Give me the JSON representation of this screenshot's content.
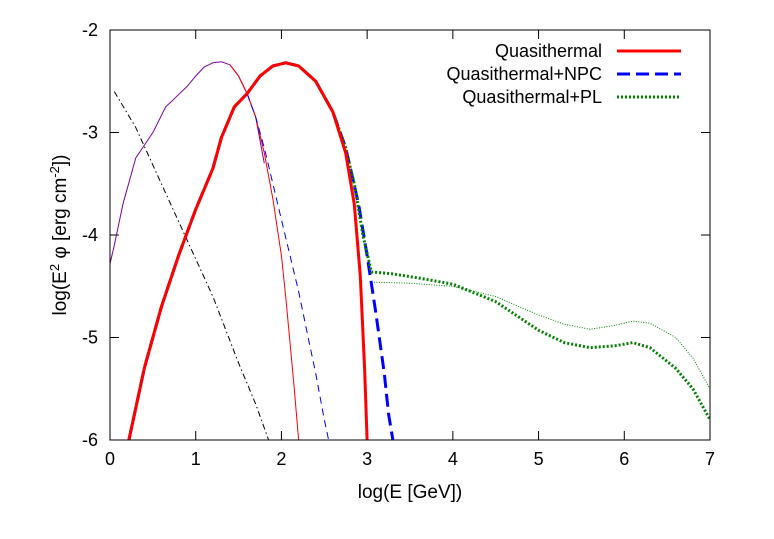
{
  "chart_data": {
    "type": "line",
    "xlabel": "log(E [GeV])",
    "ylabel": {
      "prefix": "log(E",
      "sup1": "2",
      "mid": " φ [erg cm",
      "sup2": "-2",
      "suffix": "])"
    },
    "xlim": [
      0,
      7
    ],
    "ylim": [
      -6,
      -2
    ],
    "xticks": [
      "0",
      "1",
      "2",
      "3",
      "4",
      "5",
      "6",
      "7"
    ],
    "yticks": [
      "-6",
      "-5",
      "-4",
      "-3",
      "-2"
    ],
    "legend_position": "top-right",
    "legend": [
      {
        "label": "Quasithermal",
        "color": "#ff0000",
        "style": "solid"
      },
      {
        "label": "Quasithermal+NPC",
        "color": "#0000ff",
        "style": "dashed"
      },
      {
        "label": "Quasithermal+PL",
        "color": "#008000",
        "style": "dotted"
      }
    ],
    "series": [
      {
        "id": "thin_purple_solid",
        "color": "#7a0099",
        "style": "solid",
        "thin": true,
        "x": [
          0,
          0.05,
          0.15,
          0.3,
          0.5,
          0.65,
          0.75,
          0.9,
          1.0,
          1.1,
          1.2,
          1.3,
          1.4,
          1.5,
          1.6,
          1.7,
          1.8
        ],
        "y": [
          -4.28,
          -4.1,
          -3.7,
          -3.25,
          -3.0,
          -2.75,
          -2.67,
          -2.55,
          -2.45,
          -2.36,
          -2.32,
          -2.31,
          -2.34,
          -2.45,
          -2.62,
          -2.85,
          -3.3
        ]
      },
      {
        "id": "thin_red_low",
        "color": "#ff0000",
        "style": "solid",
        "thin": true,
        "x": [
          1.4,
          1.5,
          1.6,
          1.7,
          1.8,
          1.9,
          2.0,
          2.05,
          2.1,
          2.15,
          2.2
        ],
        "y": [
          -2.34,
          -2.45,
          -2.62,
          -2.85,
          -3.2,
          -3.65,
          -4.2,
          -4.6,
          -5.05,
          -5.5,
          -6.0
        ]
      },
      {
        "id": "thin_blue_low",
        "color": "#0000ff",
        "style": "dashed",
        "thin": true,
        "x": [
          1.6,
          1.7,
          1.8,
          1.9,
          2.0,
          2.1,
          2.2,
          2.3,
          2.4,
          2.5,
          2.55
        ],
        "y": [
          -2.62,
          -2.85,
          -3.15,
          -3.5,
          -3.85,
          -4.2,
          -4.55,
          -4.95,
          -5.35,
          -5.8,
          -6.0
        ]
      },
      {
        "id": "falling_powerlaw",
        "color": "#000000",
        "style": "dashdot",
        "thin": true,
        "x": [
          0.05,
          0.3,
          0.6,
          0.9,
          1.2,
          1.5,
          1.7,
          1.85
        ],
        "y": [
          -2.6,
          -2.95,
          -3.5,
          -4.05,
          -4.6,
          -5.25,
          -5.65,
          -6.0
        ]
      },
      {
        "id": "thin_green_pl",
        "color": "#008000",
        "style": "dotted",
        "thin": true,
        "x": [
          3.05,
          3.5,
          4.0,
          4.5,
          5.0,
          5.3,
          5.6,
          5.9,
          6.1,
          6.3,
          6.6,
          6.8,
          7.0
        ],
        "y": [
          -4.46,
          -4.47,
          -4.5,
          -4.6,
          -4.78,
          -4.87,
          -4.92,
          -4.88,
          -4.84,
          -4.86,
          -5.0,
          -5.2,
          -5.5
        ]
      },
      {
        "id": "qt_npc",
        "color": "#0000ff",
        "style": "dashed",
        "thin": false,
        "x": [
          0.22,
          0.4,
          0.6,
          0.8,
          1.0,
          1.2,
          1.3,
          1.45,
          1.6,
          1.75,
          1.9,
          2.05,
          2.2,
          2.4,
          2.6,
          2.75,
          2.9,
          3.0,
          3.1,
          3.2,
          3.25,
          3.3
        ],
        "y": [
          -6.0,
          -5.3,
          -4.7,
          -4.2,
          -3.75,
          -3.35,
          -3.05,
          -2.75,
          -2.62,
          -2.45,
          -2.35,
          -2.32,
          -2.35,
          -2.5,
          -2.8,
          -3.15,
          -3.7,
          -4.2,
          -4.75,
          -5.35,
          -5.75,
          -6.0
        ]
      },
      {
        "id": "qt_pl",
        "color": "#008000",
        "style": "dotted",
        "thin": false,
        "x": [
          0.22,
          0.4,
          0.6,
          0.8,
          1.0,
          1.2,
          1.3,
          1.45,
          1.6,
          1.75,
          1.9,
          2.05,
          2.2,
          2.4,
          2.6,
          2.75,
          2.85,
          2.95,
          3.05,
          3.3,
          3.6,
          4.0,
          4.5,
          5.0,
          5.3,
          5.6,
          5.9,
          6.1,
          6.3,
          6.6,
          6.8,
          7.0
        ],
        "y": [
          -6.0,
          -5.3,
          -4.7,
          -4.2,
          -3.75,
          -3.35,
          -3.05,
          -2.75,
          -2.62,
          -2.45,
          -2.35,
          -2.32,
          -2.35,
          -2.5,
          -2.8,
          -3.15,
          -3.5,
          -4.0,
          -4.36,
          -4.38,
          -4.42,
          -4.48,
          -4.65,
          -4.93,
          -5.05,
          -5.1,
          -5.08,
          -5.05,
          -5.1,
          -5.3,
          -5.5,
          -5.8
        ]
      },
      {
        "id": "qt",
        "color": "#ff0000",
        "style": "solid",
        "thin": false,
        "x": [
          0.22,
          0.4,
          0.6,
          0.8,
          1.0,
          1.2,
          1.3,
          1.45,
          1.6,
          1.75,
          1.9,
          2.05,
          2.2,
          2.4,
          2.6,
          2.75,
          2.85,
          2.92,
          2.97,
          3.0
        ],
        "y": [
          -6.0,
          -5.3,
          -4.7,
          -4.2,
          -3.75,
          -3.35,
          -3.05,
          -2.75,
          -2.62,
          -2.45,
          -2.35,
          -2.32,
          -2.35,
          -2.5,
          -2.8,
          -3.2,
          -3.7,
          -4.4,
          -5.3,
          -6.0
        ]
      }
    ]
  }
}
